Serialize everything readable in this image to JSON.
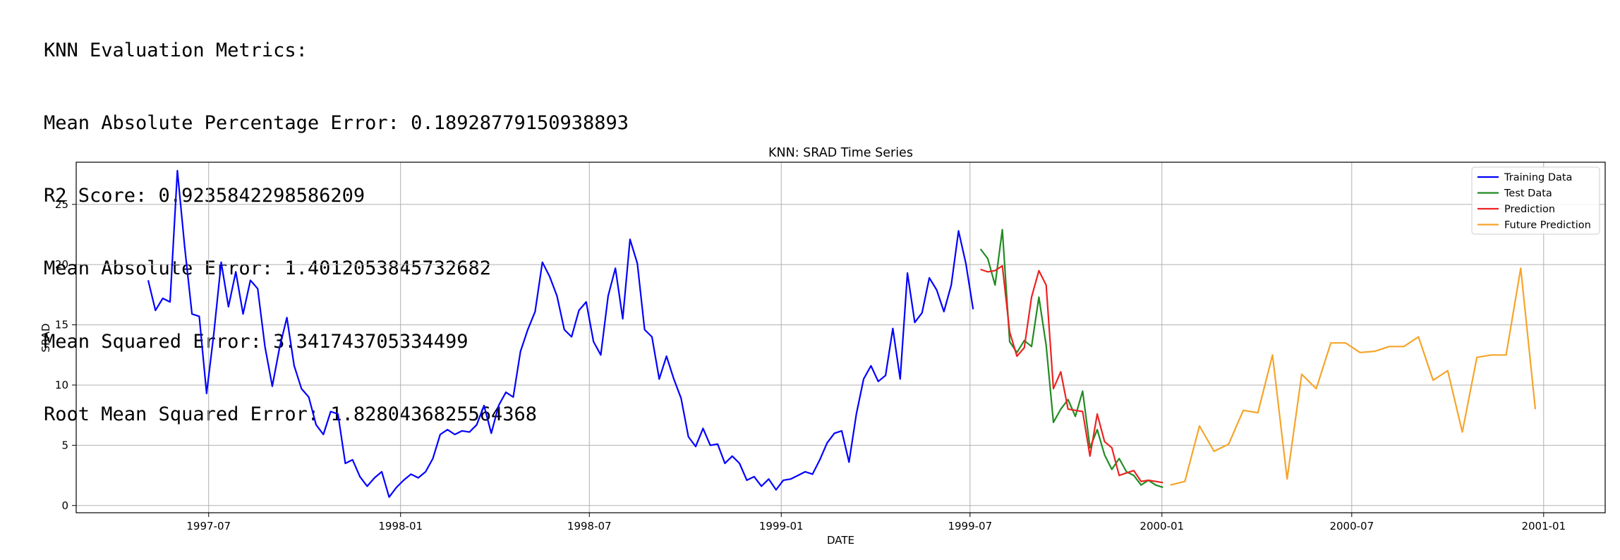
{
  "metrics": {
    "heading": "KNN Evaluation Metrics:",
    "lines": [
      "Mean Absolute Percentage Error: 0.18928779150938893",
      "R2 Score: 0.9235842298586209",
      "Mean Absolute Error: 1.4012053845732682",
      "Mean Squared Error: 3.341743705334499",
      "Root Mean Squared Error: 1.8280436825564368"
    ]
  },
  "chart_data": {
    "type": "line",
    "title": "KNN: SRAD Time Series",
    "xlabel": "DATE",
    "ylabel": "SRAD",
    "xlim": [
      "1997-02-24",
      "2001-03-01"
    ],
    "ylim": [
      -0.6,
      28.5
    ],
    "grid": true,
    "legend_position": "top-right",
    "x_ticks": [
      "1997-07",
      "1998-01",
      "1998-07",
      "1999-01",
      "1999-07",
      "2000-01",
      "2000-07",
      "2001-01"
    ],
    "y_ticks": [
      0,
      5,
      10,
      15,
      20,
      25
    ],
    "series": [
      {
        "name": "Training Data",
        "color": "#0000ff",
        "points": [
          [
            "1997-05-04",
            18.7
          ],
          [
            "1997-05-11",
            16.2
          ],
          [
            "1997-05-18",
            17.2
          ],
          [
            "1997-05-25",
            16.9
          ],
          [
            "1997-06-01",
            27.8
          ],
          [
            "1997-06-08",
            21.5
          ],
          [
            "1997-06-15",
            15.9
          ],
          [
            "1997-06-22",
            15.7
          ],
          [
            "1997-06-29",
            9.3
          ],
          [
            "1997-07-06",
            14.3
          ],
          [
            "1997-07-13",
            20.2
          ],
          [
            "1997-07-20",
            16.5
          ],
          [
            "1997-07-27",
            19.4
          ],
          [
            "1997-08-03",
            15.9
          ],
          [
            "1997-08-10",
            18.7
          ],
          [
            "1997-08-17",
            18.0
          ],
          [
            "1997-08-24",
            13.2
          ],
          [
            "1997-08-31",
            9.9
          ],
          [
            "1997-09-07",
            13.1
          ],
          [
            "1997-09-14",
            15.6
          ],
          [
            "1997-09-21",
            11.6
          ],
          [
            "1997-09-28",
            9.7
          ],
          [
            "1997-10-05",
            9.0
          ],
          [
            "1997-10-12",
            6.7
          ],
          [
            "1997-10-19",
            5.9
          ],
          [
            "1997-10-26",
            7.8
          ],
          [
            "1997-11-02",
            7.6
          ],
          [
            "1997-11-09",
            3.5
          ],
          [
            "1997-11-16",
            3.8
          ],
          [
            "1997-11-23",
            2.4
          ],
          [
            "1997-11-30",
            1.6
          ],
          [
            "1997-12-07",
            2.3
          ],
          [
            "1997-12-14",
            2.8
          ],
          [
            "1997-12-21",
            0.7
          ],
          [
            "1997-12-28",
            1.5
          ],
          [
            "1998-01-04",
            2.1
          ],
          [
            "1998-01-11",
            2.6
          ],
          [
            "1998-01-18",
            2.3
          ],
          [
            "1998-01-25",
            2.8
          ],
          [
            "1998-02-01",
            3.9
          ],
          [
            "1998-02-08",
            5.9
          ],
          [
            "1998-02-15",
            6.3
          ],
          [
            "1998-02-22",
            5.9
          ],
          [
            "1998-03-01",
            6.2
          ],
          [
            "1998-03-08",
            6.1
          ],
          [
            "1998-03-15",
            6.7
          ],
          [
            "1998-03-22",
            8.3
          ],
          [
            "1998-03-29",
            6.0
          ],
          [
            "1998-04-05",
            8.3
          ],
          [
            "1998-04-12",
            9.4
          ],
          [
            "1998-04-19",
            9.0
          ],
          [
            "1998-04-26",
            12.8
          ],
          [
            "1998-05-03",
            14.6
          ],
          [
            "1998-05-10",
            16.1
          ],
          [
            "1998-05-17",
            20.2
          ],
          [
            "1998-05-24",
            19.0
          ],
          [
            "1998-05-31",
            17.4
          ],
          [
            "1998-06-07",
            14.6
          ],
          [
            "1998-06-14",
            14.0
          ],
          [
            "1998-06-21",
            16.2
          ],
          [
            "1998-06-28",
            16.9
          ],
          [
            "1998-07-05",
            13.6
          ],
          [
            "1998-07-12",
            12.5
          ],
          [
            "1998-07-19",
            17.4
          ],
          [
            "1998-07-26",
            19.7
          ],
          [
            "1998-08-02",
            15.5
          ],
          [
            "1998-08-09",
            22.1
          ],
          [
            "1998-08-16",
            20.1
          ],
          [
            "1998-08-23",
            14.6
          ],
          [
            "1998-08-30",
            14.0
          ],
          [
            "1998-09-06",
            10.5
          ],
          [
            "1998-09-13",
            12.4
          ],
          [
            "1998-09-20",
            10.5
          ],
          [
            "1998-09-27",
            8.9
          ],
          [
            "1998-10-04",
            5.7
          ],
          [
            "1998-10-11",
            4.9
          ],
          [
            "1998-10-18",
            6.4
          ],
          [
            "1998-10-25",
            5.0
          ],
          [
            "1998-11-01",
            5.1
          ],
          [
            "1998-11-08",
            3.5
          ],
          [
            "1998-11-15",
            4.1
          ],
          [
            "1998-11-22",
            3.5
          ],
          [
            "1998-11-29",
            2.1
          ],
          [
            "1998-12-06",
            2.4
          ],
          [
            "1998-12-13",
            1.6
          ],
          [
            "1998-12-20",
            2.2
          ],
          [
            "1998-12-27",
            1.3
          ],
          [
            "1999-01-03",
            2.1
          ],
          [
            "1999-01-10",
            2.2
          ],
          [
            "1999-01-17",
            2.5
          ],
          [
            "1999-01-24",
            2.8
          ],
          [
            "1999-01-31",
            2.6
          ],
          [
            "1999-02-07",
            3.8
          ],
          [
            "1999-02-14",
            5.2
          ],
          [
            "1999-02-21",
            6.0
          ],
          [
            "1999-02-28",
            6.2
          ],
          [
            "1999-03-07",
            3.6
          ],
          [
            "1999-03-14",
            7.6
          ],
          [
            "1999-03-21",
            10.5
          ],
          [
            "1999-03-28",
            11.6
          ],
          [
            "1999-04-04",
            10.3
          ],
          [
            "1999-04-11",
            10.8
          ],
          [
            "1999-04-18",
            14.7
          ],
          [
            "1999-04-25",
            10.5
          ],
          [
            "1999-05-02",
            19.3
          ],
          [
            "1999-05-09",
            15.2
          ],
          [
            "1999-05-16",
            16.0
          ],
          [
            "1999-05-23",
            18.9
          ],
          [
            "1999-05-30",
            17.9
          ],
          [
            "1999-06-06",
            16.1
          ],
          [
            "1999-06-13",
            18.3
          ],
          [
            "1999-06-20",
            22.8
          ],
          [
            "1999-06-27",
            20.1
          ],
          [
            "1999-07-04",
            16.3
          ]
        ]
      },
      {
        "name": "Test Data",
        "color": "#228b22",
        "points": [
          [
            "1999-07-11",
            21.3
          ],
          [
            "1999-07-18",
            20.5
          ],
          [
            "1999-07-25",
            18.3
          ],
          [
            "1999-08-01",
            22.9
          ],
          [
            "1999-08-08",
            13.6
          ],
          [
            "1999-08-15",
            12.7
          ],
          [
            "1999-08-22",
            13.7
          ],
          [
            "1999-08-29",
            13.2
          ],
          [
            "1999-09-05",
            17.3
          ],
          [
            "1999-09-12",
            13.3
          ],
          [
            "1999-09-19",
            6.9
          ],
          [
            "1999-09-26",
            8.0
          ],
          [
            "1999-10-03",
            8.8
          ],
          [
            "1999-10-10",
            7.4
          ],
          [
            "1999-10-17",
            9.5
          ],
          [
            "1999-10-24",
            4.8
          ],
          [
            "1999-10-31",
            6.3
          ],
          [
            "1999-11-07",
            4.2
          ],
          [
            "1999-11-14",
            3.0
          ],
          [
            "1999-11-21",
            3.9
          ],
          [
            "1999-11-28",
            2.8
          ],
          [
            "1999-12-05",
            2.5
          ],
          [
            "1999-12-12",
            1.7
          ],
          [
            "1999-12-19",
            2.1
          ],
          [
            "1999-12-26",
            1.7
          ],
          [
            "2000-01-02",
            1.5
          ]
        ]
      },
      {
        "name": "Prediction",
        "color": "#ee2222",
        "points": [
          [
            "1999-07-11",
            19.6
          ],
          [
            "1999-07-18",
            19.4
          ],
          [
            "1999-07-25",
            19.5
          ],
          [
            "1999-08-01",
            19.9
          ],
          [
            "1999-08-08",
            14.4
          ],
          [
            "1999-08-15",
            12.4
          ],
          [
            "1999-08-22",
            13.1
          ],
          [
            "1999-08-29",
            17.3
          ],
          [
            "1999-09-05",
            19.5
          ],
          [
            "1999-09-12",
            18.3
          ],
          [
            "1999-09-19",
            9.7
          ],
          [
            "1999-09-26",
            11.1
          ],
          [
            "1999-10-03",
            8.0
          ],
          [
            "1999-10-10",
            7.9
          ],
          [
            "1999-10-17",
            7.8
          ],
          [
            "1999-10-24",
            4.1
          ],
          [
            "1999-10-31",
            7.6
          ],
          [
            "1999-11-07",
            5.3
          ],
          [
            "1999-11-14",
            4.8
          ],
          [
            "1999-11-21",
            2.5
          ],
          [
            "1999-11-28",
            2.7
          ],
          [
            "1999-12-05",
            2.9
          ],
          [
            "1999-12-12",
            2.0
          ],
          [
            "1999-12-19",
            2.1
          ],
          [
            "1999-12-26",
            2.0
          ],
          [
            "2000-01-02",
            1.9
          ]
        ]
      },
      {
        "name": "Future Prediction",
        "color": "#f5a52a",
        "points": [
          [
            "2000-01-09",
            1.7
          ],
          [
            "2000-01-23",
            2.0
          ],
          [
            "2000-02-06",
            6.6
          ],
          [
            "2000-02-20",
            4.5
          ],
          [
            "2000-03-05",
            5.1
          ],
          [
            "2000-03-19",
            7.9
          ],
          [
            "2000-04-02",
            7.7
          ],
          [
            "2000-04-16",
            12.5
          ],
          [
            "2000-04-30",
            2.2
          ],
          [
            "2000-05-14",
            10.9
          ],
          [
            "2000-05-28",
            9.7
          ],
          [
            "2000-06-11",
            13.5
          ],
          [
            "2000-06-25",
            13.5
          ],
          [
            "2000-07-09",
            12.7
          ],
          [
            "2000-07-23",
            12.8
          ],
          [
            "2000-08-06",
            13.2
          ],
          [
            "2000-08-20",
            13.2
          ],
          [
            "2000-09-03",
            14.0
          ],
          [
            "2000-09-17",
            10.4
          ],
          [
            "2000-10-01",
            11.2
          ],
          [
            "2000-10-15",
            6.1
          ],
          [
            "2000-10-29",
            12.3
          ],
          [
            "2000-11-12",
            12.5
          ],
          [
            "2000-11-26",
            12.5
          ],
          [
            "2000-12-10",
            19.7
          ],
          [
            "2000-12-24",
            8.0
          ]
        ]
      }
    ]
  }
}
